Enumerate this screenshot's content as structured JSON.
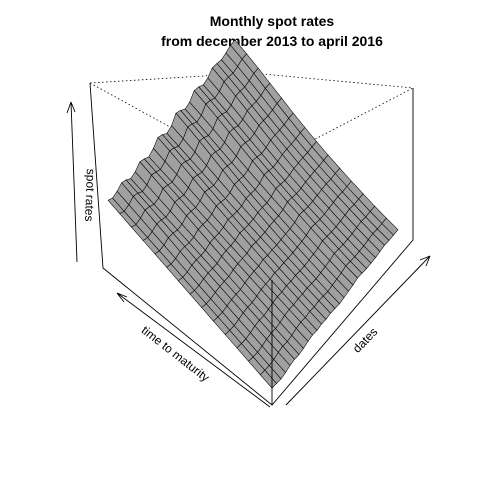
{
  "chart_data": {
    "type": "surface",
    "title": "Monthly spot rates",
    "subtitle": "from december 2013 to april 2016",
    "xlabel": "time to maturity",
    "ylabel": "dates",
    "zlabel": "spot rates",
    "surface_color": "#a0a0a0",
    "mesh_color": "#000000",
    "grid": false,
    "box": true,
    "n_maturities": 15,
    "n_dates": 29,
    "profile_start_values": [
      0.12,
      0.06,
      0.12,
      0.22,
      0.18,
      0.1,
      0.16,
      0.3,
      0.26,
      0.2,
      0.3,
      0.46,
      0.42,
      0.34,
      0.42,
      0.62,
      0.58,
      0.5,
      0.56,
      0.74,
      0.72,
      0.66,
      0.72,
      0.86,
      0.86,
      0.84,
      0.9,
      0.98,
      1.0
    ],
    "profile_end_values": [
      0.12,
      0.1,
      0.08,
      0.1,
      0.14,
      0.16,
      0.14,
      0.16,
      0.2,
      0.22,
      0.2,
      0.22,
      0.2,
      0.22,
      0.2,
      0.18,
      0.2,
      0.22,
      0.24,
      0.28,
      0.26,
      0.24,
      0.24,
      0.24,
      0.26,
      0.28,
      0.26,
      0.26,
      0.26
    ],
    "curve_shape": [
      0.0,
      0.08,
      0.18,
      0.3,
      0.42,
      0.54,
      0.64,
      0.73,
      0.8,
      0.86,
      0.91,
      0.95,
      0.98,
      1.0,
      1.0
    ]
  }
}
